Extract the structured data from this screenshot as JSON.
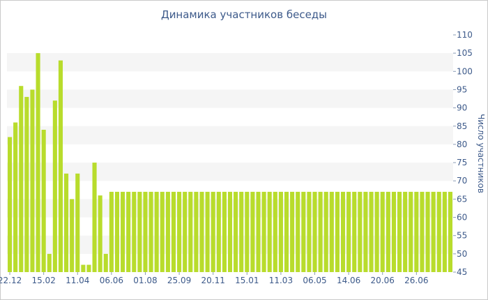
{
  "chart_data": {
    "type": "bar",
    "title": "Динамика участников беседы",
    "ylabel": "Число участников",
    "xlabel": "",
    "ylim": [
      45,
      110
    ],
    "y_ticks": [
      45,
      50,
      55,
      60,
      65,
      70,
      75,
      80,
      85,
      90,
      95,
      100,
      105,
      110
    ],
    "y_axis_position": "right",
    "grid": "alternating horizontal bands",
    "bar_color": "#b8dc2c",
    "band_color": "#f5f5f5",
    "text_color": "#3d5a8a",
    "x_tick_labels": [
      {
        "label": "22.12",
        "index": 0
      },
      {
        "label": "15.02",
        "index": 6
      },
      {
        "label": "11.04",
        "index": 12
      },
      {
        "label": "06.06",
        "index": 18
      },
      {
        "label": "01.08",
        "index": 24
      },
      {
        "label": "25.09",
        "index": 30
      },
      {
        "label": "20.11",
        "index": 36
      },
      {
        "label": "15.01",
        "index": 42
      },
      {
        "label": "11.03",
        "index": 48
      },
      {
        "label": "06.05",
        "index": 54
      },
      {
        "label": "14.06",
        "index": 60
      },
      {
        "label": "20.06",
        "index": 66
      },
      {
        "label": "26.06",
        "index": 72
      }
    ],
    "values": [
      82,
      86,
      96,
      93,
      95,
      105,
      84,
      50,
      92,
      103,
      72,
      65,
      72,
      47,
      47,
      75,
      66,
      50,
      67,
      67,
      67,
      67,
      67,
      67,
      67,
      67,
      67,
      67,
      67,
      67,
      67,
      67,
      67,
      67,
      67,
      67,
      67,
      67,
      67,
      67,
      67,
      67,
      67,
      67,
      67,
      67,
      67,
      67,
      67,
      67,
      67,
      67,
      67,
      67,
      67,
      67,
      67,
      67,
      67,
      67,
      67,
      67,
      67,
      67,
      67,
      67,
      67,
      67,
      67,
      67,
      67,
      67,
      67,
      67,
      67,
      67,
      67,
      67,
      67
    ]
  }
}
